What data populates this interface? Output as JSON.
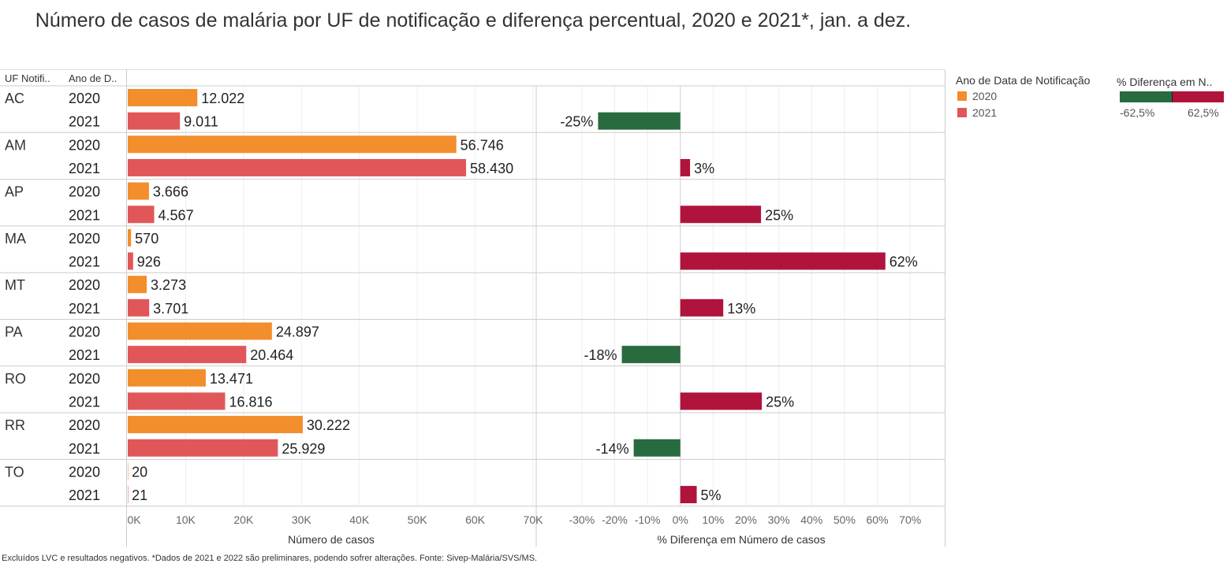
{
  "title": "Número de casos de malária por UF de notificação e diferença percentual, 2020 e 2021*, jan. a dez.",
  "headers": {
    "uf": "UF Notifi..",
    "ano": "Ano de D.."
  },
  "chart_data": [
    {
      "type": "bar",
      "orientation": "horizontal",
      "xlabel": "Número de casos",
      "xlim": [
        0,
        70000
      ],
      "x_ticks": [
        "0K",
        "10K",
        "20K",
        "30K",
        "40K",
        "50K",
        "60K",
        "70K"
      ],
      "categories": [
        {
          "uf": "AC",
          "rows": [
            {
              "year": "2020",
              "value": 12022,
              "label": "12.022"
            },
            {
              "year": "2021",
              "value": 9011,
              "label": "9.011"
            }
          ]
        },
        {
          "uf": "AM",
          "rows": [
            {
              "year": "2020",
              "value": 56746,
              "label": "56.746"
            },
            {
              "year": "2021",
              "value": 58430,
              "label": "58.430"
            }
          ]
        },
        {
          "uf": "AP",
          "rows": [
            {
              "year": "2020",
              "value": 3666,
              "label": "3.666"
            },
            {
              "year": "2021",
              "value": 4567,
              "label": "4.567"
            }
          ]
        },
        {
          "uf": "MA",
          "rows": [
            {
              "year": "2020",
              "value": 570,
              "label": "570"
            },
            {
              "year": "2021",
              "value": 926,
              "label": "926"
            }
          ]
        },
        {
          "uf": "MT",
          "rows": [
            {
              "year": "2020",
              "value": 3273,
              "label": "3.273"
            },
            {
              "year": "2021",
              "value": 3701,
              "label": "3.701"
            }
          ]
        },
        {
          "uf": "PA",
          "rows": [
            {
              "year": "2020",
              "value": 24897,
              "label": "24.897"
            },
            {
              "year": "2021",
              "value": 20464,
              "label": "20.464"
            }
          ]
        },
        {
          "uf": "RO",
          "rows": [
            {
              "year": "2020",
              "value": 13471,
              "label": "13.471"
            },
            {
              "year": "2021",
              "value": 16816,
              "label": "16.816"
            }
          ]
        },
        {
          "uf": "RR",
          "rows": [
            {
              "year": "2020",
              "value": 30222,
              "label": "30.222"
            },
            {
              "year": "2021",
              "value": 25929,
              "label": "25.929"
            }
          ]
        },
        {
          "uf": "TO",
          "rows": [
            {
              "year": "2020",
              "value": 20,
              "label": "20"
            },
            {
              "year": "2021",
              "value": 21,
              "label": "21"
            }
          ]
        }
      ],
      "colors": {
        "2020": "#f28e2b",
        "2021": "#e15759"
      }
    },
    {
      "type": "bar",
      "orientation": "horizontal",
      "xlabel": "% Diferença em Número de casos",
      "xlim": [
        -0.35,
        0.75
      ],
      "x_ticks": [
        "-30%",
        "-20%",
        "-10%",
        "0%",
        "10%",
        "20%",
        "30%",
        "40%",
        "50%",
        "60%",
        "70%"
      ],
      "values": [
        {
          "uf": "AC",
          "value": -0.2505,
          "label": "-25%"
        },
        {
          "uf": "AM",
          "value": 0.0297,
          "label": "3%"
        },
        {
          "uf": "AP",
          "value": 0.2458,
          "label": "25%"
        },
        {
          "uf": "MA",
          "value": 0.6246,
          "label": "62%"
        },
        {
          "uf": "MT",
          "value": 0.1308,
          "label": "13%"
        },
        {
          "uf": "PA",
          "value": -0.1781,
          "label": "-18%"
        },
        {
          "uf": "RO",
          "value": 0.2483,
          "label": "25%"
        },
        {
          "uf": "RR",
          "value": -0.142,
          "label": "-14%"
        },
        {
          "uf": "TO",
          "value": 0.05,
          "label": "5%"
        }
      ],
      "colors": {
        "negative": "#276b3e",
        "positive": "#b0143c"
      }
    }
  ],
  "legend": {
    "title": "Ano de Data de Notificação",
    "items": [
      {
        "label": "2020",
        "color": "#f28e2b"
      },
      {
        "label": "2021",
        "color": "#e15759"
      }
    ]
  },
  "color_legend": {
    "title": "% Diferença em N..",
    "min_label": "-62,5%",
    "max_label": "62,5%",
    "min_color": "#276b3e",
    "max_color": "#b0143c"
  },
  "footnote": "Excluídos LVC e resultados negativos. *Dados de 2021 e 2022 são preliminares, podendo sofrer alterações. Fonte: Sivep-Malária/SVS/MS."
}
